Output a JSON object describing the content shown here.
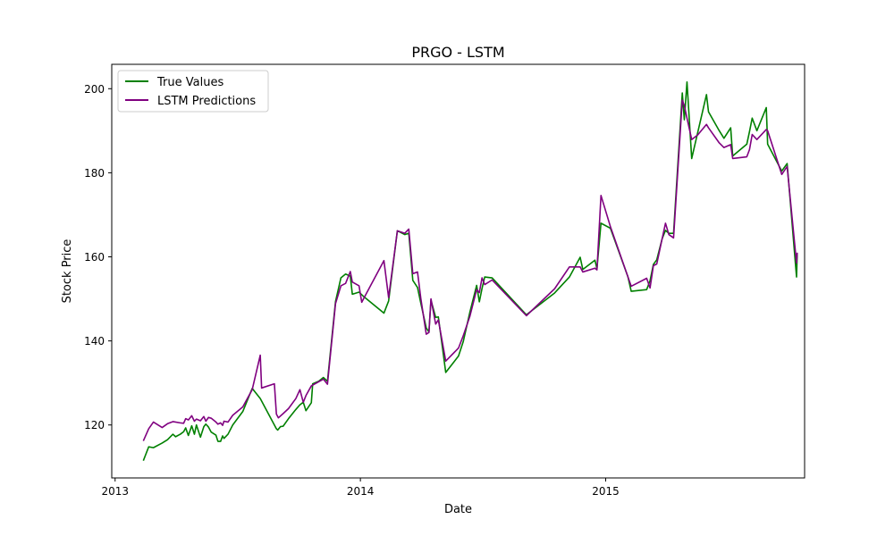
{
  "chart_data": {
    "type": "line",
    "title": "PRGO - LSTM",
    "xlabel": "Date",
    "ylabel": "Stock Price",
    "xlim": [
      "2012-12-27",
      "2015-10-24"
    ],
    "ylim": [
      107.4,
      205.8
    ],
    "x_ticks": [
      {
        "value": "2013-01-01",
        "label": "2013"
      },
      {
        "value": "2014-01-01",
        "label": "2014"
      },
      {
        "value": "2015-01-01",
        "label": "2015"
      }
    ],
    "y_ticks": [
      120,
      140,
      160,
      180,
      200
    ],
    "legend_position": "top-left",
    "grid": false,
    "series": [
      {
        "name": "True Values",
        "color": "#008000",
        "points": [
          [
            "2013-02-12",
            111.5
          ],
          [
            "2013-02-20",
            114.8
          ],
          [
            "2013-02-27",
            114.6
          ],
          [
            "2013-03-12",
            115.7
          ],
          [
            "2013-03-20",
            116.5
          ],
          [
            "2013-03-28",
            117.8
          ],
          [
            "2013-04-01",
            117.2
          ],
          [
            "2013-04-08",
            117.8
          ],
          [
            "2013-04-13",
            118.4
          ],
          [
            "2013-04-16",
            119.3
          ],
          [
            "2013-04-20",
            117.5
          ],
          [
            "2013-04-25",
            119.8
          ],
          [
            "2013-04-29",
            117.8
          ],
          [
            "2013-05-02",
            120.0
          ],
          [
            "2013-05-08",
            117.1
          ],
          [
            "2013-05-13",
            119.6
          ],
          [
            "2013-05-16",
            120.2
          ],
          [
            "2013-05-20",
            119.5
          ],
          [
            "2013-05-24",
            118.3
          ],
          [
            "2013-05-31",
            117.6
          ],
          [
            "2013-06-03",
            116.1
          ],
          [
            "2013-06-07",
            116.1
          ],
          [
            "2013-06-10",
            117.4
          ],
          [
            "2013-06-12",
            116.8
          ],
          [
            "2013-06-18",
            117.8
          ],
          [
            "2013-06-25",
            120.0
          ],
          [
            "2013-07-10",
            123.2
          ],
          [
            "2013-07-24",
            128.7
          ],
          [
            "2013-08-05",
            126.3
          ],
          [
            "2013-08-29",
            119.1
          ],
          [
            "2013-08-31",
            118.8
          ],
          [
            "2013-09-04",
            119.6
          ],
          [
            "2013-09-08",
            119.7
          ],
          [
            "2013-09-16",
            121.5
          ],
          [
            "2013-09-27",
            123.7
          ],
          [
            "2013-10-03",
            124.8
          ],
          [
            "2013-10-08",
            125.4
          ],
          [
            "2013-10-12",
            123.4
          ],
          [
            "2013-10-20",
            125.3
          ],
          [
            "2013-10-22",
            129.8
          ],
          [
            "2013-10-31",
            130.4
          ],
          [
            "2013-11-07",
            131.3
          ],
          [
            "2013-11-13",
            130.4
          ],
          [
            "2013-11-25",
            149.4
          ],
          [
            "2013-12-03",
            155.0
          ],
          [
            "2013-12-10",
            155.9
          ],
          [
            "2013-12-17",
            155.4
          ],
          [
            "2013-12-20",
            151.1
          ],
          [
            "2013-12-30",
            151.6
          ],
          [
            "2014-01-07",
            150.4
          ],
          [
            "2014-02-05",
            146.6
          ],
          [
            "2014-02-12",
            149.5
          ],
          [
            "2014-02-25",
            166.2
          ],
          [
            "2014-03-08",
            165.3
          ],
          [
            "2014-03-14",
            165.6
          ],
          [
            "2014-03-20",
            154.4
          ],
          [
            "2014-03-27",
            152.7
          ],
          [
            "2014-04-01",
            148.9
          ],
          [
            "2014-04-09",
            143.1
          ],
          [
            "2014-04-13",
            142.1
          ],
          [
            "2014-04-16",
            149.7
          ],
          [
            "2014-04-23",
            145.6
          ],
          [
            "2014-04-27",
            145.7
          ],
          [
            "2014-05-08",
            132.5
          ],
          [
            "2014-05-27",
            136.4
          ],
          [
            "2014-06-03",
            139.8
          ],
          [
            "2014-06-13",
            146.9
          ],
          [
            "2014-06-23",
            153.2
          ],
          [
            "2014-06-27",
            149.3
          ],
          [
            "2014-07-01",
            152.5
          ],
          [
            "2014-07-05",
            155.2
          ],
          [
            "2014-07-16",
            155.0
          ],
          [
            "2014-09-05",
            146.2
          ],
          [
            "2014-10-17",
            151.4
          ],
          [
            "2014-11-08",
            155.2
          ],
          [
            "2014-11-24",
            159.9
          ],
          [
            "2014-11-28",
            157.0
          ],
          [
            "2014-12-16",
            159.2
          ],
          [
            "2014-12-19",
            157.2
          ],
          [
            "2014-12-25",
            168.0
          ],
          [
            "2015-01-08",
            166.8
          ],
          [
            "2015-02-03",
            155.3
          ],
          [
            "2015-02-08",
            151.8
          ],
          [
            "2015-03-03",
            152.2
          ],
          [
            "2015-03-08",
            154.3
          ],
          [
            "2015-03-13",
            158.2
          ],
          [
            "2015-03-18",
            159.3
          ],
          [
            "2015-03-26",
            164.3
          ],
          [
            "2015-03-31",
            166.3
          ],
          [
            "2015-04-05",
            165.6
          ],
          [
            "2015-04-12",
            165.6
          ],
          [
            "2015-04-25",
            199.0
          ],
          [
            "2015-04-28",
            192.6
          ],
          [
            "2015-05-02",
            201.6
          ],
          [
            "2015-05-09",
            183.4
          ],
          [
            "2015-05-18",
            189.6
          ],
          [
            "2015-05-31",
            198.6
          ],
          [
            "2015-06-03",
            194.5
          ],
          [
            "2015-06-19",
            190.0
          ],
          [
            "2015-06-26",
            188.2
          ],
          [
            "2015-07-06",
            190.7
          ],
          [
            "2015-07-09",
            184.0
          ],
          [
            "2015-07-30",
            186.8
          ],
          [
            "2015-08-03",
            189.8
          ],
          [
            "2015-08-07",
            193.0
          ],
          [
            "2015-08-14",
            190.0
          ],
          [
            "2015-08-28",
            195.5
          ],
          [
            "2015-08-30",
            186.8
          ],
          [
            "2015-09-20",
            180.4
          ],
          [
            "2015-09-28",
            182.2
          ],
          [
            "2015-10-12",
            155.2
          ],
          [
            "2015-10-13",
            160.7
          ]
        ]
      },
      {
        "name": "LSTM Predictions",
        "color": "#800080",
        "points": [
          [
            "2013-02-12",
            116.2
          ],
          [
            "2013-02-20",
            119.1
          ],
          [
            "2013-02-27",
            120.7
          ],
          [
            "2013-03-12",
            119.4
          ],
          [
            "2013-03-20",
            120.3
          ],
          [
            "2013-03-28",
            120.8
          ],
          [
            "2013-04-08",
            120.5
          ],
          [
            "2013-04-13",
            120.4
          ],
          [
            "2013-04-16",
            121.5
          ],
          [
            "2013-04-20",
            121.2
          ],
          [
            "2013-04-25",
            122.2
          ],
          [
            "2013-04-29",
            120.9
          ],
          [
            "2013-05-02",
            121.4
          ],
          [
            "2013-05-08",
            121.0
          ],
          [
            "2013-05-13",
            122.0
          ],
          [
            "2013-05-16",
            120.9
          ],
          [
            "2013-05-20",
            121.8
          ],
          [
            "2013-05-24",
            121.6
          ],
          [
            "2013-05-31",
            120.7
          ],
          [
            "2013-06-03",
            120.2
          ],
          [
            "2013-06-07",
            120.5
          ],
          [
            "2013-06-10",
            119.9
          ],
          [
            "2013-06-12",
            120.9
          ],
          [
            "2013-06-18",
            120.7
          ],
          [
            "2013-06-25",
            122.3
          ],
          [
            "2013-07-10",
            124.3
          ],
          [
            "2013-07-24",
            128.4
          ],
          [
            "2013-08-05",
            136.6
          ],
          [
            "2013-08-07",
            128.8
          ],
          [
            "2013-08-26",
            129.8
          ],
          [
            "2013-08-29",
            122.6
          ],
          [
            "2013-09-01",
            121.7
          ],
          [
            "2013-09-08",
            122.7
          ],
          [
            "2013-09-16",
            123.9
          ],
          [
            "2013-09-27",
            126.3
          ],
          [
            "2013-10-03",
            128.4
          ],
          [
            "2013-10-08",
            125.4
          ],
          [
            "2013-10-12",
            127.0
          ],
          [
            "2013-10-20",
            129.3
          ],
          [
            "2013-10-31",
            130.3
          ],
          [
            "2013-11-07",
            130.9
          ],
          [
            "2013-11-13",
            129.7
          ],
          [
            "2013-11-25",
            148.9
          ],
          [
            "2013-12-03",
            153.1
          ],
          [
            "2013-12-10",
            153.7
          ],
          [
            "2013-12-17",
            156.5
          ],
          [
            "2013-12-20",
            154.0
          ],
          [
            "2013-12-30",
            153.1
          ],
          [
            "2014-01-03",
            149.2
          ],
          [
            "2014-01-07",
            150.4
          ],
          [
            "2014-02-05",
            159.1
          ],
          [
            "2014-02-12",
            150.3
          ],
          [
            "2014-02-25",
            166.2
          ],
          [
            "2014-03-08",
            165.6
          ],
          [
            "2014-03-14",
            166.6
          ],
          [
            "2014-03-20",
            156.0
          ],
          [
            "2014-03-27",
            156.4
          ],
          [
            "2014-04-01",
            150.0
          ],
          [
            "2014-04-09",
            141.6
          ],
          [
            "2014-04-13",
            142.0
          ],
          [
            "2014-04-16",
            150.0
          ],
          [
            "2014-04-23",
            144.0
          ],
          [
            "2014-04-27",
            145.0
          ],
          [
            "2014-05-08",
            135.2
          ],
          [
            "2014-05-27",
            138.3
          ],
          [
            "2014-06-03",
            141.2
          ],
          [
            "2014-06-13",
            145.9
          ],
          [
            "2014-06-23",
            152.2
          ],
          [
            "2014-06-27",
            151.5
          ],
          [
            "2014-07-01",
            155.0
          ],
          [
            "2014-07-05",
            153.4
          ],
          [
            "2014-07-16",
            154.5
          ],
          [
            "2014-09-05",
            146.0
          ],
          [
            "2014-10-17",
            152.4
          ],
          [
            "2014-11-08",
            157.6
          ],
          [
            "2014-11-24",
            157.6
          ],
          [
            "2014-11-28",
            156.4
          ],
          [
            "2014-12-16",
            157.3
          ],
          [
            "2014-12-19",
            156.9
          ],
          [
            "2014-12-25",
            174.6
          ],
          [
            "2015-01-08",
            167.2
          ],
          [
            "2015-02-03",
            155.3
          ],
          [
            "2015-02-08",
            153.0
          ],
          [
            "2015-03-03",
            154.9
          ],
          [
            "2015-03-08",
            152.6
          ],
          [
            "2015-03-13",
            157.9
          ],
          [
            "2015-03-18",
            158.3
          ],
          [
            "2015-03-26",
            164.3
          ],
          [
            "2015-03-31",
            168.0
          ],
          [
            "2015-04-05",
            165.3
          ],
          [
            "2015-04-12",
            164.5
          ],
          [
            "2015-04-25",
            197.3
          ],
          [
            "2015-04-28",
            196.0
          ],
          [
            "2015-05-02",
            193.0
          ],
          [
            "2015-05-09",
            187.9
          ],
          [
            "2015-05-18",
            189.0
          ],
          [
            "2015-05-31",
            191.5
          ],
          [
            "2015-06-03",
            190.7
          ],
          [
            "2015-06-19",
            187.1
          ],
          [
            "2015-06-26",
            186.0
          ],
          [
            "2015-07-06",
            186.7
          ],
          [
            "2015-07-09",
            183.4
          ],
          [
            "2015-07-30",
            183.8
          ],
          [
            "2015-08-03",
            185.5
          ],
          [
            "2015-08-07",
            189.1
          ],
          [
            "2015-08-14",
            187.9
          ],
          [
            "2015-08-28",
            190.3
          ],
          [
            "2015-08-30",
            190.0
          ],
          [
            "2015-09-20",
            179.6
          ],
          [
            "2015-09-28",
            181.5
          ],
          [
            "2015-10-12",
            158.5
          ],
          [
            "2015-10-13",
            161.0
          ]
        ]
      }
    ]
  }
}
